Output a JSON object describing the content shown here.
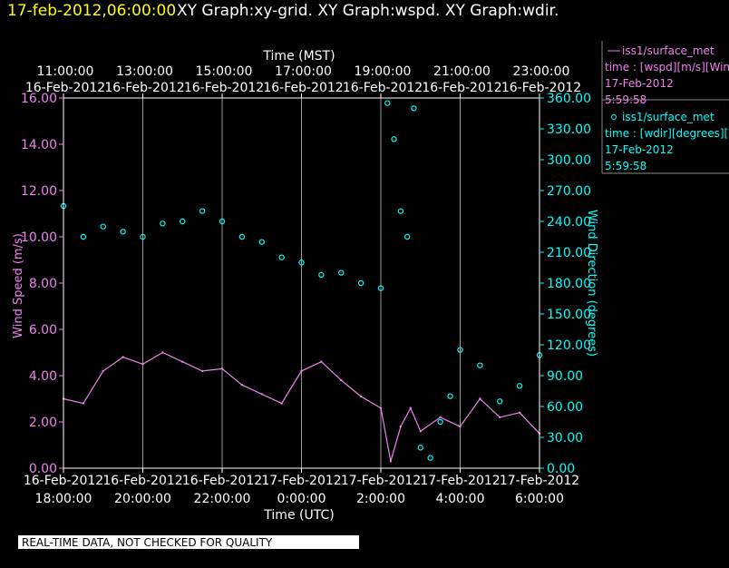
{
  "header": {
    "timestamp": "17-feb-2012,06:00:00",
    "title": "XY Graph:xy-grid.  XY Graph:wspd.  XY Graph:wdir."
  },
  "colors": {
    "background": "#000000",
    "timestamp": "#ffff00",
    "wspd": "#ee82ee",
    "wdir": "#00ffff",
    "axes": "#ffffff"
  },
  "legend": {
    "wspd": {
      "series": "iss1/surface_met",
      "desc": "time : [wspd][m/s][Win",
      "date": "17-Feb-2012",
      "time": "5:59:58"
    },
    "wdir": {
      "series": "iss1/surface_met",
      "desc": "time : [wdir][degrees][V",
      "date": "17-Feb-2012",
      "time": "5:59:58"
    }
  },
  "footer": {
    "disclaimer": "REAL-TIME DATA, NOT CHECKED FOR QUALITY"
  },
  "chart_data": {
    "type": "line",
    "top_axis": {
      "label": "Time (MST)",
      "ticks": [
        {
          "time": "11:00:00",
          "date": "16-Feb-2012"
        },
        {
          "time": "13:00:00",
          "date": "16-Feb-2012"
        },
        {
          "time": "15:00:00",
          "date": "16-Feb-2012"
        },
        {
          "time": "17:00:00",
          "date": "16-Feb-2012"
        },
        {
          "time": "19:00:00",
          "date": "16-Feb-2012"
        },
        {
          "time": "21:00:00",
          "date": "16-Feb-2012"
        },
        {
          "time": "23:00:00",
          "date": "16-Feb-2012"
        }
      ]
    },
    "bottom_axis": {
      "label": "Time (UTC)",
      "ticks": [
        {
          "date": "16-Feb-2012",
          "time": "18:00:00"
        },
        {
          "date": "16-Feb-2012",
          "time": "20:00:00"
        },
        {
          "date": "16-Feb-2012",
          "time": "22:00:00"
        },
        {
          "date": "17-Feb-2012",
          "time": "0:00:00"
        },
        {
          "date": "17-Feb-2012",
          "time": "2:00:00"
        },
        {
          "date": "17-Feb-2012",
          "time": "4:00:00"
        },
        {
          "date": "17-Feb-2012",
          "time": "6:00:00"
        }
      ]
    },
    "xlim_utc": [
      "2012-02-16 18:00:00",
      "2012-02-17 06:00:00"
    ],
    "left_axis": {
      "label": "Wind Speed (m/s)",
      "ylim": [
        0,
        16
      ],
      "ticks": [
        "0.00",
        "2.00",
        "4.00",
        "6.00",
        "8.00",
        "10.00",
        "12.00",
        "14.00",
        "16.00"
      ]
    },
    "right_axis": {
      "label": "Wind Direction (degrees)",
      "ylim": [
        0,
        360
      ],
      "ticks": [
        "0.00",
        "30.00",
        "60.00",
        "90.00",
        "120.00",
        "150.00",
        "180.00",
        "210.00",
        "240.00",
        "270.00",
        "300.00",
        "330.00",
        "360.00"
      ]
    },
    "grid": "vertical",
    "series": [
      {
        "key": "wspd",
        "axis": "left",
        "style": "line",
        "x": [
          "2012-02-16 18:00",
          "2012-02-16 18:30",
          "2012-02-16 19:00",
          "2012-02-16 19:30",
          "2012-02-16 20:00",
          "2012-02-16 20:30",
          "2012-02-16 21:00",
          "2012-02-16 21:30",
          "2012-02-16 22:00",
          "2012-02-16 22:30",
          "2012-02-16 23:00",
          "2012-02-16 23:30",
          "2012-02-17 00:00",
          "2012-02-17 00:30",
          "2012-02-17 01:00",
          "2012-02-17 01:30",
          "2012-02-17 02:00",
          "2012-02-17 02:15",
          "2012-02-17 02:30",
          "2012-02-17 02:45",
          "2012-02-17 03:00",
          "2012-02-17 03:30",
          "2012-02-17 04:00",
          "2012-02-17 04:30",
          "2012-02-17 05:00",
          "2012-02-17 05:30",
          "2012-02-17 06:00"
        ],
        "values": [
          3.0,
          2.8,
          4.2,
          4.8,
          4.5,
          5.0,
          4.6,
          4.2,
          4.3,
          3.6,
          3.2,
          2.8,
          4.2,
          4.6,
          3.8,
          3.1,
          2.6,
          0.3,
          1.8,
          2.6,
          1.6,
          2.2,
          1.8,
          3.0,
          2.2,
          2.4,
          1.5
        ]
      },
      {
        "key": "wdir",
        "axis": "right",
        "style": "markers",
        "x": [
          "2012-02-16 18:00",
          "2012-02-16 18:30",
          "2012-02-16 19:00",
          "2012-02-16 19:30",
          "2012-02-16 20:00",
          "2012-02-16 20:30",
          "2012-02-16 21:00",
          "2012-02-16 21:30",
          "2012-02-16 22:00",
          "2012-02-16 22:30",
          "2012-02-16 23:00",
          "2012-02-16 23:30",
          "2012-02-17 00:00",
          "2012-02-17 00:30",
          "2012-02-17 01:00",
          "2012-02-17 01:30",
          "2012-02-17 02:00",
          "2012-02-17 02:10",
          "2012-02-17 02:20",
          "2012-02-17 02:30",
          "2012-02-17 02:40",
          "2012-02-17 02:50",
          "2012-02-17 03:00",
          "2012-02-17 03:15",
          "2012-02-17 03:30",
          "2012-02-17 03:45",
          "2012-02-17 04:00",
          "2012-02-17 04:30",
          "2012-02-17 05:00",
          "2012-02-17 05:30",
          "2012-02-17 06:00"
        ],
        "values": [
          255,
          225,
          235,
          230,
          225,
          238,
          240,
          250,
          240,
          225,
          220,
          205,
          200,
          188,
          190,
          180,
          175,
          355,
          320,
          250,
          225,
          350,
          20,
          10,
          45,
          70,
          115,
          100,
          65,
          80,
          110
        ]
      }
    ]
  }
}
